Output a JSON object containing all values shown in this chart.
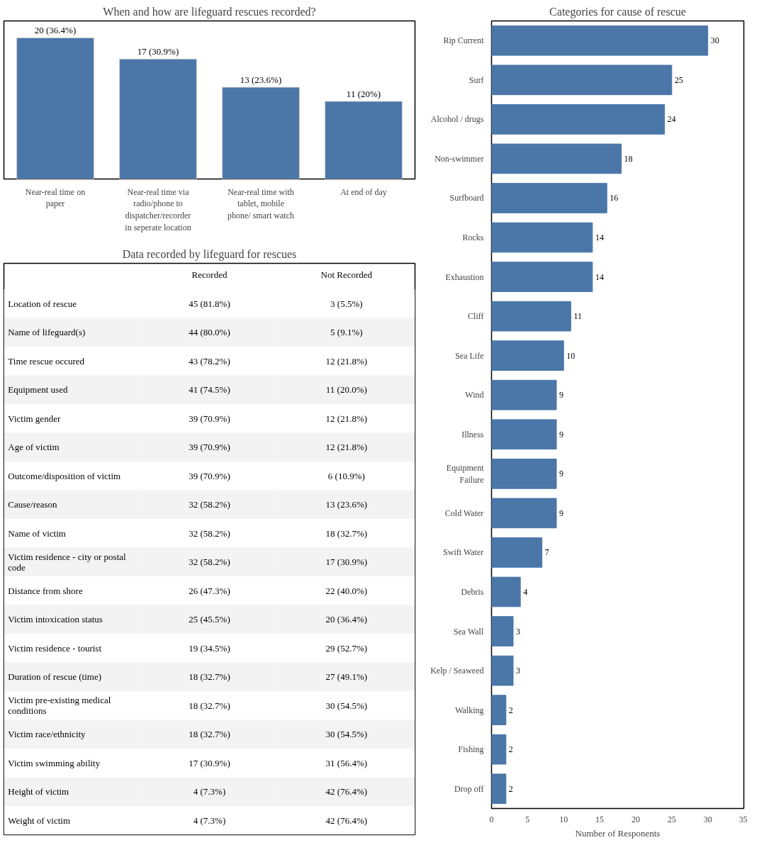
{
  "chart_data": [
    {
      "type": "bar",
      "title": "When and how are lifeguard rescues recorded?",
      "categories": [
        "Near-real time on paper",
        "Near-real time via radio/phone to dispatcher/recorder in seperate location",
        "Near-real time with tablet, mobile phone/ smart watch",
        "At end of day"
      ],
      "values": [
        20,
        17,
        13,
        11
      ],
      "value_labels": [
        "20 (36.4%)",
        "17 (30.9%)",
        "13 (23.6%)",
        "11 (20%)"
      ],
      "color": "#4a76a8",
      "tick_labels": "x",
      "grid": false
    },
    {
      "type": "heatmap",
      "title": "Data recorded by lifeguard for rescues",
      "categories": [
        "Recorded",
        "Not Recorded"
      ],
      "y_categories": [
        "Location of rescue",
        "Name of lifeguard(s)",
        "Time rescue occured",
        "Equipment used",
        "Victim gender",
        "Age of victim",
        "Outcome/disposition of victim",
        "Cause/reason",
        "Name of victim",
        "Victim residence - city or postal code",
        "Distance from shore",
        "Victim intoxication status",
        "Victim residence - tourist",
        "Duration of rescue (time)",
        "Victim pre-existing medical conditions",
        "Victim race/ethnicity",
        "Victim swimming ability",
        "Height of victim",
        "Weight of victim"
      ],
      "cells": [
        [
          "45 (81.8%)",
          "3 (5.5%)"
        ],
        [
          "44 (80.0%)",
          "5 (9.1%)"
        ],
        [
          "43 (78.2%)",
          "12 (21.8%)"
        ],
        [
          "41 (74.5%)",
          "11 (20.0%)"
        ],
        [
          "39 (70.9%)",
          "12 (21.8%)"
        ],
        [
          "39 (70.9%)",
          "12 (21.8%)"
        ],
        [
          "39 (70.9%)",
          "6 (10.9%)"
        ],
        [
          "32 (58.2%)",
          "13 (23.6%)"
        ],
        [
          "32 (58.2%)",
          "18 (32.7%)"
        ],
        [
          "32 (58.2%)",
          "17 (30.9%)"
        ],
        [
          "26 (47.3%)",
          "22 (40.0%)"
        ],
        [
          "25 (45.5%)",
          "20 (36.4%)"
        ],
        [
          "19 (34.5%)",
          "29 (52.7%)"
        ],
        [
          "18 (32.7%)",
          "27 (49.1%)"
        ],
        [
          "18 (32.7%)",
          "30 (54.5%)"
        ],
        [
          "18 (32.7%)",
          "30 (54.5%)"
        ],
        [
          "17 (30.9%)",
          "31 (56.4%)"
        ],
        [
          "4 (7.3%)",
          "42 (76.4%)"
        ],
        [
          "4 (7.3%)",
          "42 (76.4%)"
        ]
      ]
    },
    {
      "type": "bar",
      "orientation": "horizontal",
      "title": "Categories for cause of rescue",
      "xlabel": "Number of Responents",
      "categories": [
        "Rip Current",
        "Surf",
        "Alcohol / drugs",
        "Non-swimmer",
        "Surfboard",
        "Rocks",
        "Exhaustion",
        "Cliff",
        "Sea Life",
        "Wind",
        "Illness",
        "Equipment Failure",
        "Cold Water",
        "Swift Water",
        "Debris",
        "Sea Wall",
        "Kelp / Seaweed",
        "Walking",
        "Fishing",
        "Drop off"
      ],
      "values": [
        30,
        25,
        24,
        18,
        16,
        14,
        14,
        11,
        10,
        9,
        9,
        9,
        9,
        7,
        4,
        3,
        3,
        2,
        2,
        2
      ],
      "color": "#4a76a8",
      "data_labels": true,
      "xlim": [
        0,
        35
      ],
      "xticks": [
        0,
        5,
        10,
        15,
        20,
        25,
        30,
        35
      ],
      "grid": false
    }
  ]
}
